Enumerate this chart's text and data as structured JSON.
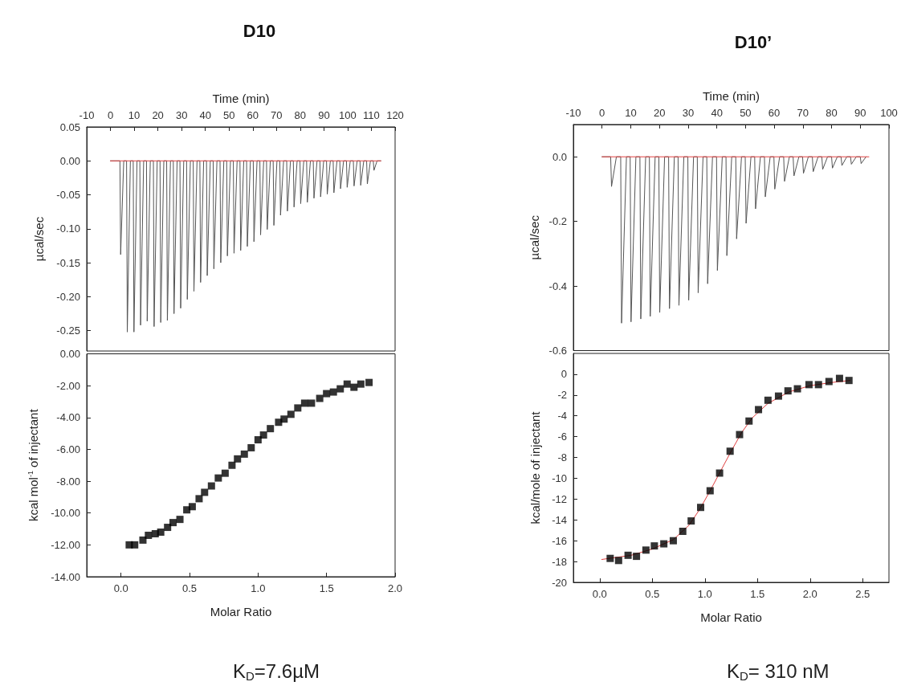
{
  "chart_data": [
    {
      "type": "line",
      "title": "D10",
      "xlabel": "Time (min)",
      "ylabel": "µcal/sec",
      "xlim": [
        -10,
        120
      ],
      "xticks": [
        -10,
        0,
        10,
        20,
        30,
        40,
        50,
        60,
        70,
        80,
        90,
        100,
        110,
        120
      ],
      "ylim": [
        -0.28,
        0.05
      ],
      "yticks": [
        {
          "value": 0.05,
          "label": "0.05"
        },
        {
          "value": 0,
          "label": "0.00"
        },
        -0.05,
        {
          "value": -0.1,
          "label": "-0.10"
        },
        -0.15,
        {
          "value": -0.2,
          "label": "-0.20"
        },
        -0.25
      ],
      "series": [
        {
          "color": "#555555",
          "x": [
            0,
            4.0,
            4.3,
            5.6,
            6.8,
            7.1,
            8.4,
            9.6,
            9.9,
            11.2,
            12.4,
            12.7,
            14.0,
            15.2,
            15.5,
            16.8,
            18.1,
            18.4,
            19.7,
            20.9,
            21.2,
            22.5,
            23.7,
            24.0,
            25.3,
            26.5,
            26.8,
            28.1,
            29.3,
            29.6,
            30.9,
            32.1,
            32.4,
            33.7,
            34.9,
            35.2,
            36.5,
            37.7,
            38.0,
            39.3,
            40.5,
            40.8,
            42.1,
            43.3,
            43.6,
            44.9,
            46.2,
            46.5,
            47.8,
            49.0,
            49.3,
            50.6,
            51.8,
            52.1,
            53.4,
            54.6,
            54.9,
            56.2,
            57.4,
            57.7,
            59.0,
            60.2,
            60.5,
            61.8,
            63.0,
            63.3,
            64.6,
            65.8,
            66.1,
            67.4,
            68.6,
            68.9,
            70.2,
            71.4,
            71.7,
            73.0,
            74.3,
            74.6,
            75.9,
            77.1,
            77.4,
            78.7,
            79.9,
            80.2,
            81.5,
            82.7,
            83.0,
            84.3,
            85.5,
            85.8,
            87.1,
            88.3,
            88.6,
            89.9,
            91.1,
            91.4,
            92.7,
            93.9,
            94.2,
            95.5,
            96.7,
            97.0,
            98.3,
            99.5,
            99.8,
            101.1,
            102.4,
            102.7,
            104.0,
            105.2,
            105.5,
            106.8,
            108.0,
            108.3,
            109.6,
            110.8,
            111.1,
            112.4,
            114
          ],
          "values": [
            0,
            0,
            -0.138,
            0,
            0,
            -0.252,
            0,
            0,
            -0.252,
            0,
            0,
            -0.242,
            0,
            0,
            -0.236,
            0,
            0,
            -0.244,
            0,
            0,
            -0.238,
            0,
            0,
            -0.235,
            0,
            0,
            -0.225,
            0,
            0,
            -0.217,
            0,
            0,
            -0.204,
            0,
            0,
            -0.192,
            0,
            0,
            -0.179,
            0,
            0,
            -0.169,
            0,
            0,
            -0.159,
            0,
            0,
            -0.15,
            0,
            0,
            -0.14,
            0,
            0,
            -0.136,
            0,
            0,
            -0.132,
            0,
            0,
            -0.126,
            0,
            0,
            -0.119,
            0,
            0,
            -0.109,
            0,
            0,
            -0.101,
            0,
            0,
            -0.095,
            0,
            0,
            -0.08,
            0,
            0,
            -0.074,
            0,
            0,
            -0.068,
            0,
            0,
            -0.063,
            0,
            0,
            -0.061,
            0,
            0,
            -0.055,
            0,
            0,
            -0.053,
            0,
            0,
            -0.049,
            0,
            0,
            -0.047,
            0,
            0,
            -0.041,
            0,
            0,
            -0.039,
            0,
            0,
            -0.037,
            0,
            0,
            -0.036,
            0,
            0,
            -0.034,
            0,
            0,
            -0.014,
            0,
            0
          ]
        },
        {
          "color": "#e04040",
          "x": [
            0,
            114
          ],
          "values": [
            0,
            0
          ]
        }
      ]
    },
    {
      "type": "scatter",
      "marker": "square",
      "xlabel": "Molar Ratio",
      "ylabel": "kcal mol$^{-1}$ of injectant",
      "xlim": [
        -0.25,
        2.0
      ],
      "xticks": [
        {
          "value": 0,
          "label": "0.0"
        },
        0.5,
        {
          "value": 1,
          "label": "1.0"
        },
        1.5,
        {
          "value": 2,
          "label": "2.0"
        }
      ],
      "ylim": [
        -14,
        0
      ],
      "yticks": [
        {
          "value": 0,
          "label": "0.00"
        },
        {
          "value": -2,
          "label": "-2.00"
        },
        {
          "value": -4,
          "label": "-4.00"
        },
        {
          "value": -6,
          "label": "-6.00"
        },
        {
          "value": -8,
          "label": "-8.00"
        },
        {
          "value": -10,
          "label": "-10.00"
        },
        {
          "value": -12,
          "label": "-12.00"
        },
        {
          "value": -14,
          "label": "-14.00"
        }
      ],
      "annotations": [
        "K$_{D}$=7.6µM"
      ],
      "series": [
        {
          "color": "#000000",
          "x": [
            0.06,
            0.1,
            0.16,
            0.2,
            0.25,
            0.29,
            0.34,
            0.38,
            0.43,
            0.48,
            0.52,
            0.57,
            0.61,
            0.66,
            0.71,
            0.76,
            0.81,
            0.85,
            0.9,
            0.95,
            1.0,
            1.04,
            1.09,
            1.15,
            1.19,
            1.24,
            1.29,
            1.34,
            1.39,
            1.45,
            1.5,
            1.55,
            1.6,
            1.65,
            1.7,
            1.75,
            1.81
          ],
          "values": [
            -12.0,
            -12.0,
            -11.7,
            -11.4,
            -11.3,
            -11.2,
            -10.9,
            -10.6,
            -10.4,
            -9.8,
            -9.6,
            -9.1,
            -8.7,
            -8.3,
            -7.8,
            -7.5,
            -7.0,
            -6.6,
            -6.3,
            -5.9,
            -5.4,
            -5.1,
            -4.7,
            -4.3,
            -4.1,
            -3.8,
            -3.4,
            -3.1,
            -3.1,
            -2.8,
            -2.5,
            -2.4,
            -2.2,
            -1.9,
            -2.1,
            -1.9,
            -1.8
          ]
        }
      ]
    },
    {
      "type": "line",
      "title": "D10’",
      "xlabel": "Time (min)",
      "ylabel": "µcal/sec",
      "xlim": [
        -10,
        100
      ],
      "xticks": [
        -10,
        0,
        10,
        20,
        30,
        40,
        50,
        60,
        70,
        80,
        90,
        100
      ],
      "ylim": [
        -0.6,
        0.1
      ],
      "yticks": [
        {
          "value": 0,
          "label": "0.0"
        },
        -0.2,
        -0.4,
        -0.6
      ],
      "series": [
        {
          "color": "#555555",
          "x": [
            0,
            3.0,
            3.3,
            5.0,
            6.5,
            6.8,
            8.5,
            9.8,
            10.1,
            11.8,
            13.2,
            13.5,
            15.2,
            16.5,
            16.8,
            18.5,
            19.8,
            20.1,
            21.8,
            23.2,
            23.5,
            25.2,
            26.5,
            26.8,
            28.5,
            29.9,
            30.2,
            31.9,
            33.2,
            33.5,
            35.2,
            36.5,
            36.8,
            38.5,
            39.9,
            40.2,
            41.9,
            43.2,
            43.5,
            45.2,
            46.6,
            46.9,
            48.6,
            49.9,
            50.2,
            51.9,
            53.2,
            53.5,
            55.2,
            56.6,
            56.9,
            58.6,
            59.9,
            60.2,
            61.9,
            63.3,
            63.6,
            65.3,
            66.6,
            66.9,
            68.6,
            69.9,
            70.2,
            71.9,
            73.3,
            73.6,
            75.3,
            76.6,
            76.9,
            78.6,
            80.0,
            80.3,
            82.0,
            83.3,
            83.6,
            85.3,
            86.6,
            86.9,
            88.6,
            90.0,
            90.3,
            92.0
          ],
          "values": [
            0,
            0,
            -0.092,
            0,
            0,
            -0.515,
            0,
            0,
            -0.511,
            0,
            0,
            -0.502,
            0,
            0,
            -0.494,
            0,
            0,
            -0.482,
            0,
            0,
            -0.47,
            0,
            0,
            -0.46,
            0,
            0,
            -0.444,
            0,
            0,
            -0.421,
            0,
            0,
            -0.393,
            0,
            0,
            -0.352,
            0,
            0,
            -0.306,
            0,
            0,
            -0.254,
            0,
            0,
            -0.206,
            0,
            0,
            -0.161,
            0,
            0,
            -0.124,
            0,
            0,
            -0.1,
            0,
            0,
            -0.076,
            0,
            0,
            -0.059,
            0,
            0,
            -0.051,
            0,
            0,
            -0.046,
            0,
            0,
            -0.039,
            0,
            0,
            -0.035,
            0,
            0,
            -0.027,
            0,
            0,
            -0.023,
            0,
            0,
            -0.021,
            0
          ]
        },
        {
          "color": "#e04040",
          "x": [
            0,
            93
          ],
          "values": [
            0,
            0
          ]
        }
      ]
    },
    {
      "type": "scatter",
      "xlabel": "Molar Ratio",
      "ylabel": "kcal/mole of injectant",
      "xlim": [
        -0.25,
        2.75
      ],
      "xticks": [
        {
          "value": 0,
          "label": "0.0"
        },
        0.5,
        {
          "value": 1,
          "label": "1.0"
        },
        1.5,
        {
          "value": 2,
          "label": "2.0"
        },
        2.5
      ],
      "ylim": [
        -20,
        2
      ],
      "yticks": [
        -20,
        -18,
        -16,
        -14,
        -12,
        -10,
        -8,
        -6,
        -4,
        -2,
        0
      ],
      "annotations": [
        "K$_{D}$= 310 nM"
      ],
      "series": [
        {
          "type": "line",
          "color": "#e04040",
          "x": [
            0.02,
            0.3,
            0.5,
            0.7,
            0.85,
            0.95,
            1.05,
            1.15,
            1.25,
            1.35,
            1.45,
            1.6,
            1.8,
            2.0,
            2.2,
            2.38
          ],
          "values": [
            -17.8,
            -17.4,
            -16.8,
            -15.9,
            -14.5,
            -13.0,
            -11.2,
            -9.3,
            -7.4,
            -5.6,
            -4.2,
            -2.8,
            -1.7,
            -1.1,
            -0.8,
            -0.6
          ]
        },
        {
          "color": "#000000",
          "marker": "square",
          "x": [
            0.1,
            0.18,
            0.27,
            0.35,
            0.44,
            0.52,
            0.61,
            0.7,
            0.79,
            0.87,
            0.96,
            1.05,
            1.14,
            1.24,
            1.33,
            1.42,
            1.51,
            1.6,
            1.7,
            1.79,
            1.88,
            1.99,
            2.08,
            2.18,
            2.28,
            2.37
          ],
          "values": [
            -17.7,
            -17.9,
            -17.4,
            -17.5,
            -16.9,
            -16.5,
            -16.3,
            -16.0,
            -15.1,
            -14.1,
            -12.8,
            -11.2,
            -9.5,
            -7.4,
            -5.8,
            -4.5,
            -3.4,
            -2.5,
            -2.1,
            -1.6,
            -1.4,
            -1.0,
            -1.0,
            -0.7,
            -0.4,
            -0.6
          ]
        }
      ]
    }
  ]
}
